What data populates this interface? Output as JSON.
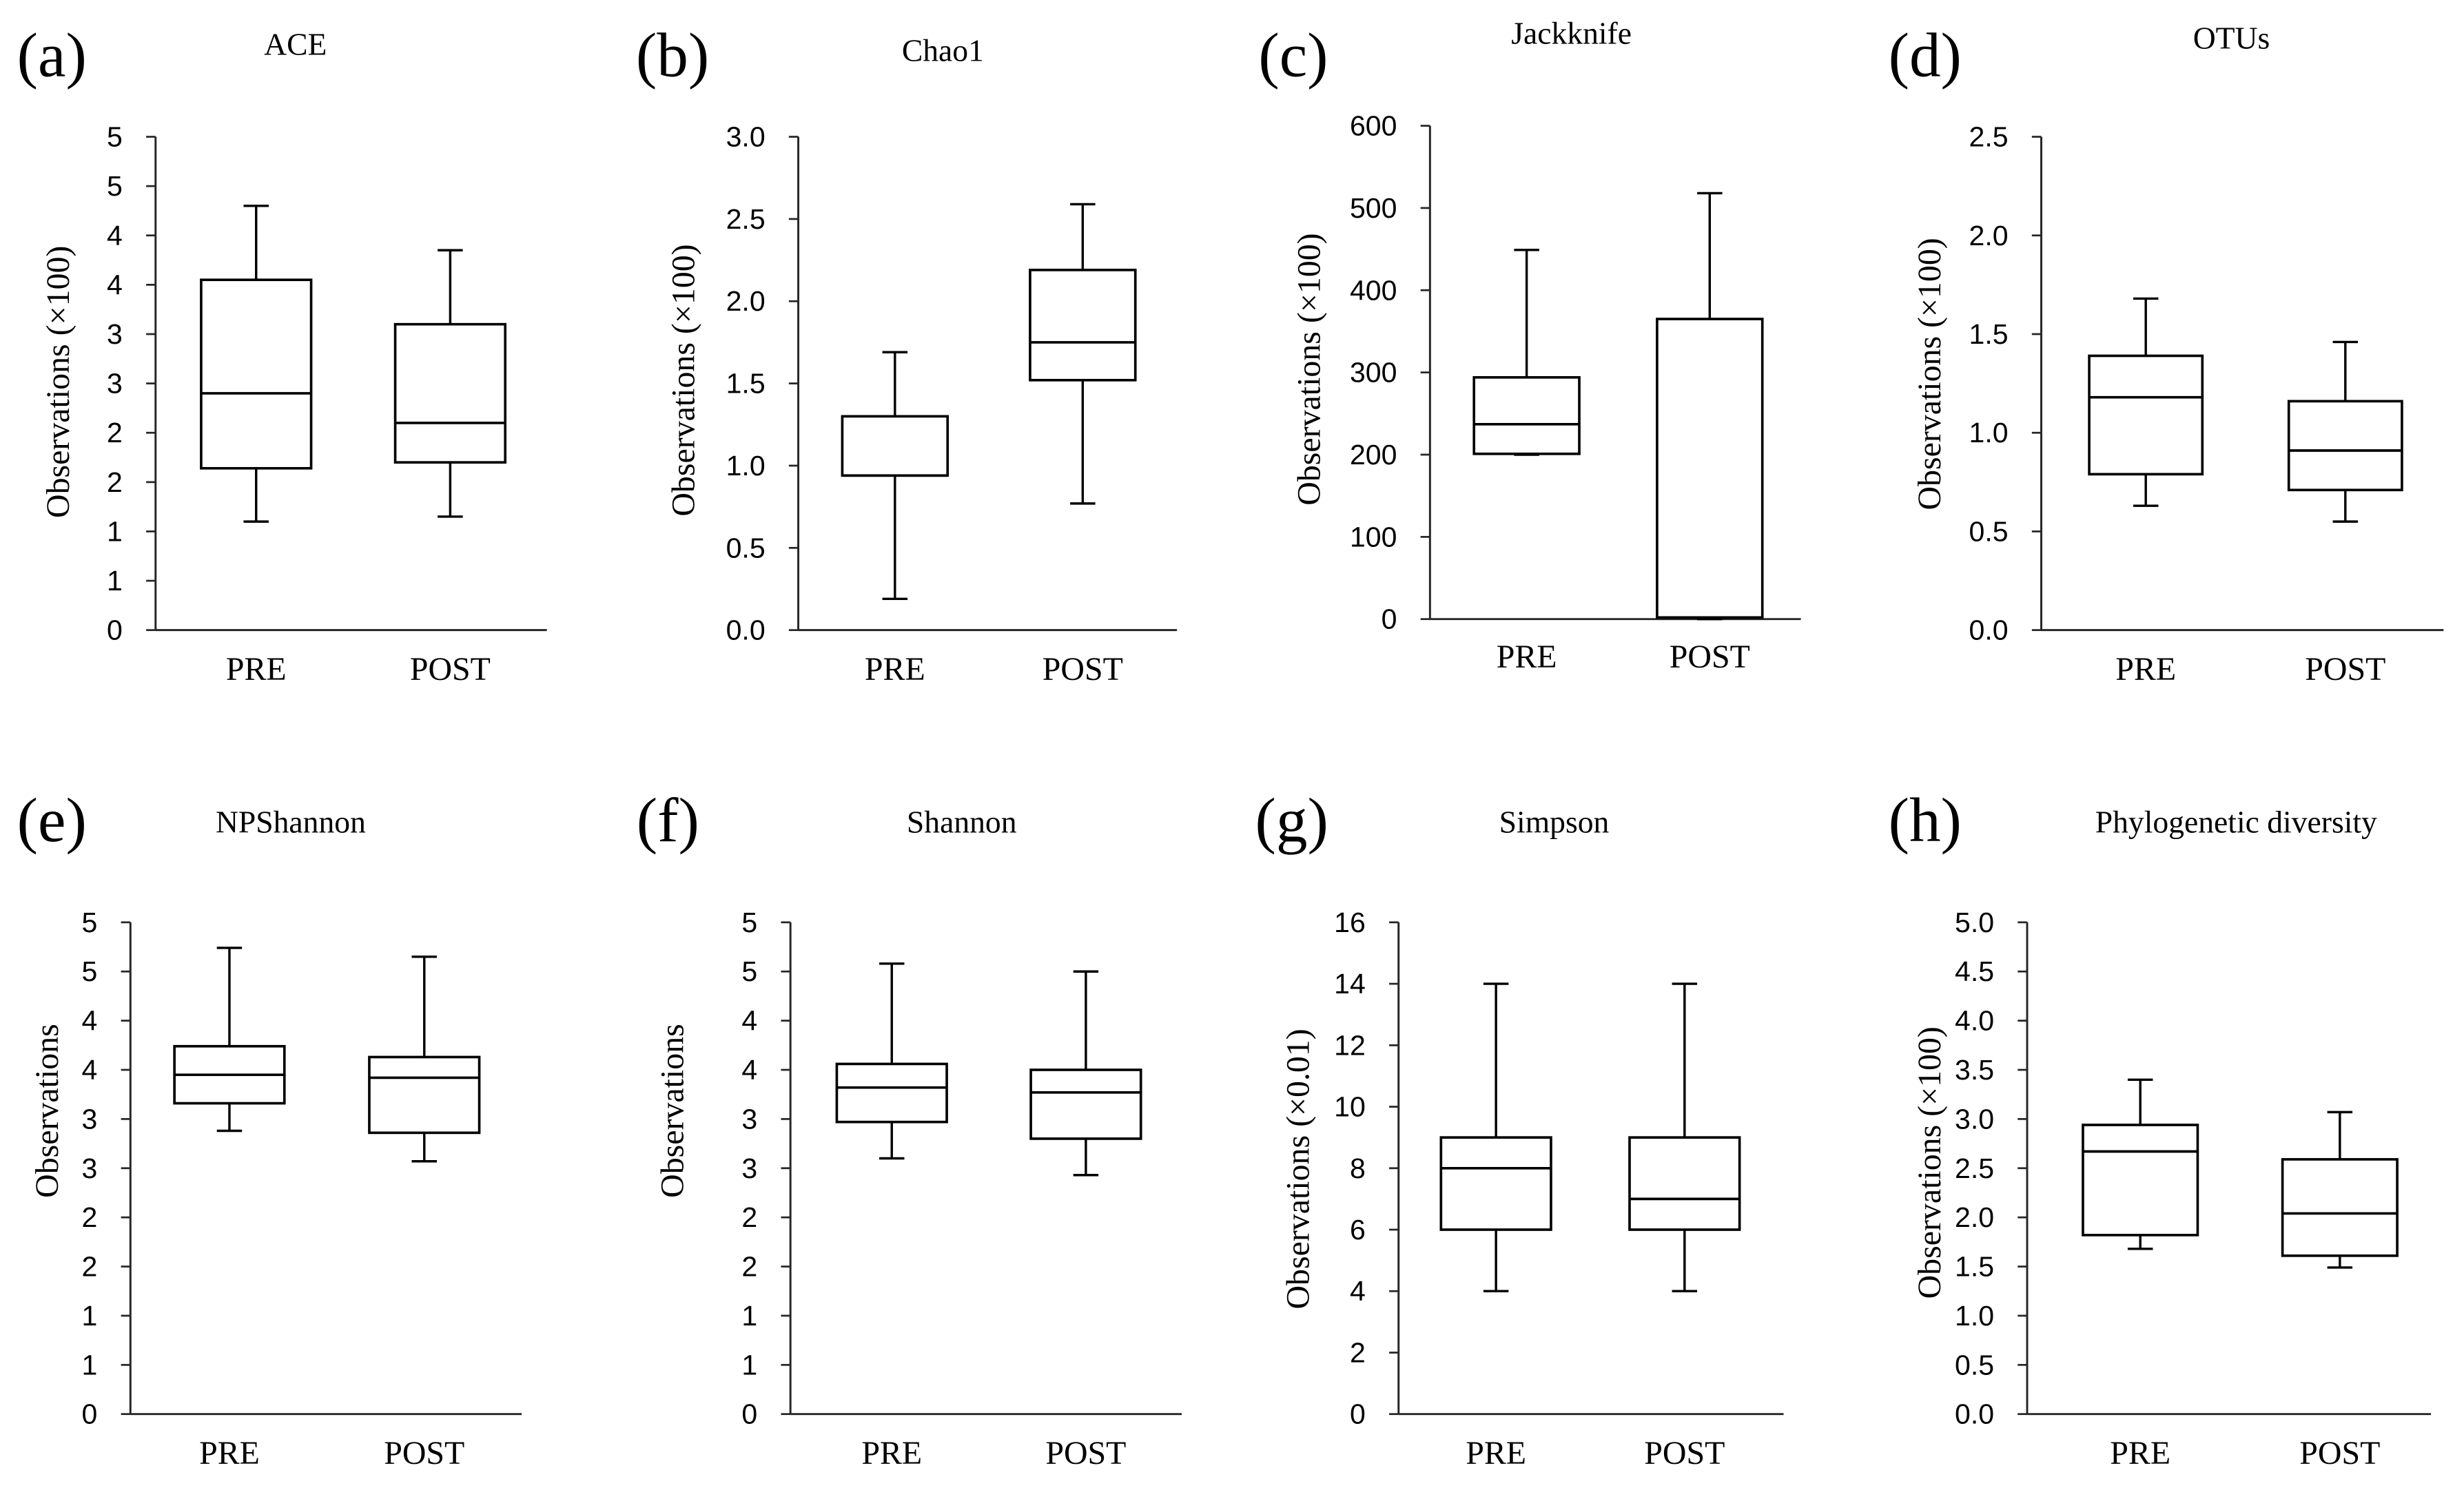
{
  "colors": {
    "box_stroke": "#000000",
    "box_fill": "#ffffff",
    "axis": "#262626"
  },
  "chart_data": [
    {
      "type": "box",
      "panel_label": "(a)",
      "title": "ACE",
      "xlabel": "",
      "ylabel": "Observations (×100)",
      "categories": [
        "PRE",
        "POST"
      ],
      "ylim": [
        0,
        5
      ],
      "yticks": [
        0,
        0.5,
        1,
        1.5,
        2,
        2.5,
        3,
        3.5,
        4,
        4.5,
        5
      ],
      "ytick_labels": [
        "0",
        "1",
        "1",
        "2",
        "2",
        "3",
        "3",
        "4",
        "4",
        "5",
        "5"
      ],
      "grid": false,
      "series": [
        {
          "name": "PRE",
          "min": 1.1,
          "q1": 1.64,
          "median": 2.4,
          "q3": 3.55,
          "max": 4.3
        },
        {
          "name": "POST",
          "min": 1.15,
          "q1": 1.7,
          "median": 2.1,
          "q3": 3.1,
          "max": 3.85
        }
      ]
    },
    {
      "type": "box",
      "panel_label": "(b)",
      "title": "Chao1",
      "xlabel": "",
      "ylabel": "Observations (×100)",
      "categories": [
        "PRE",
        "POST"
      ],
      "ylim": [
        0,
        3
      ],
      "yticks": [
        0,
        0.5,
        1,
        1.5,
        2,
        2.5,
        3
      ],
      "ytick_labels": [
        "0.0",
        "0.5",
        "1.0",
        "1.5",
        "2.0",
        "2.5",
        "3.0"
      ],
      "grid": false,
      "series": [
        {
          "name": "PRE",
          "min": 0.19,
          "q1": 0.94,
          "median": 0.94,
          "q3": 1.3,
          "max": 1.69
        },
        {
          "name": "POST",
          "min": 0.77,
          "q1": 1.52,
          "median": 1.75,
          "q3": 2.19,
          "max": 2.59
        }
      ]
    },
    {
      "type": "box",
      "panel_label": "(c)",
      "title": "Jackknife",
      "xlabel": "",
      "ylabel": "Observations (×100)",
      "categories": [
        "PRE",
        "POST"
      ],
      "ylim": [
        0,
        600
      ],
      "yticks": [
        0,
        100,
        200,
        300,
        400,
        500,
        600
      ],
      "ytick_labels": [
        "0",
        "100",
        "200",
        "300",
        "400",
        "500",
        "600"
      ],
      "grid": false,
      "series": [
        {
          "name": "PRE",
          "min": 200,
          "q1": 201,
          "median": 237,
          "q3": 294,
          "max": 449
        },
        {
          "name": "POST",
          "min": 0,
          "q1": 2,
          "median": 2,
          "q3": 365,
          "max": 518
        }
      ]
    },
    {
      "type": "box",
      "panel_label": "(d)",
      "title": "OTUs",
      "xlabel": "",
      "ylabel": "Observations (×100)",
      "categories": [
        "PRE",
        "POST"
      ],
      "ylim": [
        0,
        2.5
      ],
      "yticks": [
        0,
        0.5,
        1,
        1.5,
        2,
        2.5
      ],
      "ytick_labels": [
        "0.0",
        "0.5",
        "1.0",
        "1.5",
        "2.0",
        "2.5"
      ],
      "grid": false,
      "series": [
        {
          "name": "PRE",
          "min": 0.63,
          "q1": 0.79,
          "median": 1.18,
          "q3": 1.39,
          "max": 1.68
        },
        {
          "name": "POST",
          "min": 0.55,
          "q1": 0.71,
          "median": 0.91,
          "q3": 1.16,
          "max": 1.46
        }
      ]
    },
    {
      "type": "box",
      "panel_label": "(e)",
      "title": "NPShannon",
      "xlabel": "",
      "ylabel": "Observations",
      "categories": [
        "PRE",
        "POST"
      ],
      "ylim": [
        0,
        5
      ],
      "yticks": [
        0,
        0.5,
        1,
        1.5,
        2,
        2.5,
        3,
        3.5,
        4,
        4.5,
        5
      ],
      "ytick_labels": [
        "0",
        "1",
        "1",
        "2",
        "2",
        "3",
        "3",
        "4",
        "4",
        "5",
        "5"
      ],
      "grid": false,
      "series": [
        {
          "name": "PRE",
          "min": 2.88,
          "q1": 3.16,
          "median": 3.45,
          "q3": 3.74,
          "max": 4.74
        },
        {
          "name": "POST",
          "min": 2.57,
          "q1": 2.86,
          "median": 3.42,
          "q3": 3.63,
          "max": 4.65
        }
      ]
    },
    {
      "type": "box",
      "panel_label": "(f)",
      "title": "Shannon",
      "xlabel": "",
      "ylabel": "Observations",
      "categories": [
        "PRE",
        "POST"
      ],
      "ylim": [
        0,
        5
      ],
      "yticks": [
        0,
        0.5,
        1,
        1.5,
        2,
        2.5,
        3,
        3.5,
        4,
        4.5,
        5
      ],
      "ytick_labels": [
        "0",
        "1",
        "1",
        "2",
        "2",
        "3",
        "3",
        "4",
        "4",
        "5",
        "5"
      ],
      "grid": false,
      "series": [
        {
          "name": "PRE",
          "min": 2.6,
          "q1": 2.97,
          "median": 3.32,
          "q3": 3.56,
          "max": 4.58
        },
        {
          "name": "POST",
          "min": 2.43,
          "q1": 2.8,
          "median": 3.27,
          "q3": 3.5,
          "max": 4.5
        }
      ]
    },
    {
      "type": "box",
      "panel_label": "(g)",
      "title": "Simpson",
      "xlabel": "",
      "ylabel": "Observations (×0.01)",
      "categories": [
        "PRE",
        "POST"
      ],
      "ylim": [
        0,
        16
      ],
      "yticks": [
        0,
        2,
        4,
        6,
        8,
        10,
        12,
        14,
        16
      ],
      "ytick_labels": [
        "0",
        "2",
        "4",
        "6",
        "8",
        "10",
        "12",
        "14",
        "16"
      ],
      "grid": false,
      "series": [
        {
          "name": "PRE",
          "min": 4,
          "q1": 6,
          "median": 8,
          "q3": 9,
          "max": 14
        },
        {
          "name": "POST",
          "min": 4,
          "q1": 6,
          "median": 7,
          "q3": 9,
          "max": 14
        }
      ]
    },
    {
      "type": "box",
      "panel_label": "(h)",
      "title": "Phylogenetic diversity",
      "xlabel": "",
      "ylabel": "Observations (×100)",
      "categories": [
        "PRE",
        "POST"
      ],
      "ylim": [
        0,
        5
      ],
      "yticks": [
        0,
        0.5,
        1,
        1.5,
        2,
        2.5,
        3,
        3.5,
        4,
        4.5,
        5
      ],
      "ytick_labels": [
        "0.0",
        "0.5",
        "1.0",
        "1.5",
        "2.0",
        "2.5",
        "3.0",
        "3.5",
        "4.0",
        "4.5",
        "5.0"
      ],
      "grid": false,
      "series": [
        {
          "name": "PRE",
          "min": 1.68,
          "q1": 1.82,
          "median": 2.67,
          "q3": 2.94,
          "max": 3.4
        },
        {
          "name": "POST",
          "min": 1.49,
          "q1": 1.61,
          "median": 2.04,
          "q3": 2.59,
          "max": 3.07
        }
      ]
    }
  ]
}
